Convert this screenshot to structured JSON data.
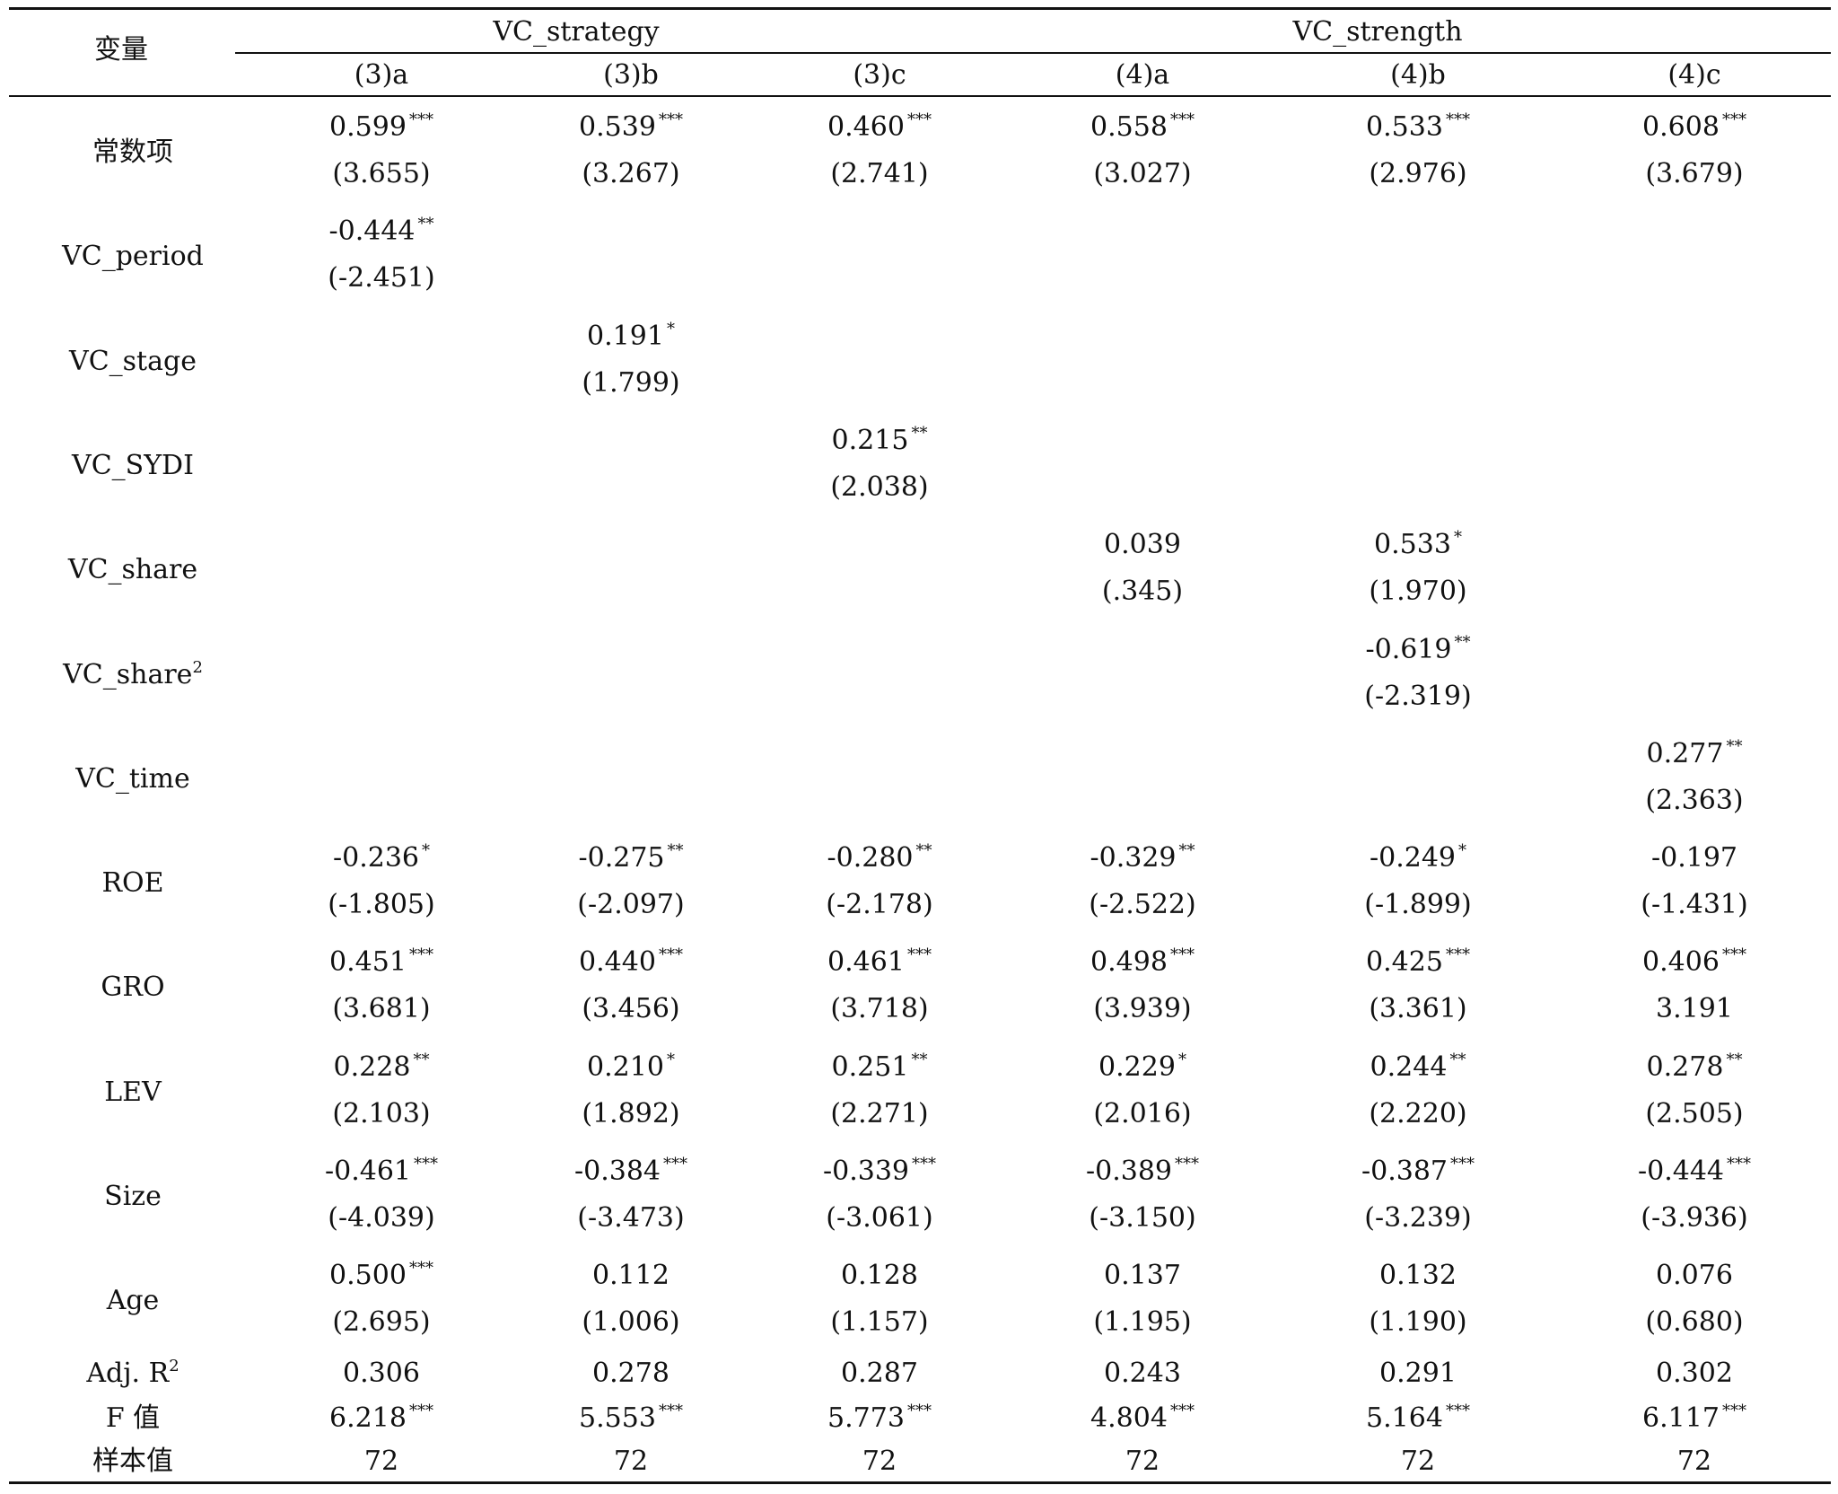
{
  "header": {
    "row_label": "变量",
    "groups": [
      {
        "label": "VC_strategy"
      },
      {
        "label": "VC_strength"
      }
    ],
    "columns": [
      "(3)a",
      "(3)b",
      "(3)c",
      "(4)a",
      "(4)b",
      "(4)c"
    ]
  },
  "rows": [
    {
      "label": "常数项",
      "sup": "",
      "cells": [
        {
          "coef": "0.599",
          "stars": "***",
          "t": "(3.655)"
        },
        {
          "coef": "0.539",
          "stars": "***",
          "t": "(3.267)"
        },
        {
          "coef": "0.460",
          "stars": "***",
          "t": "(2.741)"
        },
        {
          "coef": "0.558",
          "stars": "***",
          "t": "(3.027)"
        },
        {
          "coef": "0.533",
          "stars": "***",
          "t": "(2.976)"
        },
        {
          "coef": "0.608",
          "stars": "***",
          "t": "(3.679)"
        }
      ]
    },
    {
      "label": "VC_period",
      "sup": "",
      "cells": [
        {
          "coef": "-0.444",
          "stars": "**",
          "t": "(-2.451)"
        },
        {
          "coef": "",
          "stars": "",
          "t": ""
        },
        {
          "coef": "",
          "stars": "",
          "t": ""
        },
        {
          "coef": "",
          "stars": "",
          "t": ""
        },
        {
          "coef": "",
          "stars": "",
          "t": ""
        },
        {
          "coef": "",
          "stars": "",
          "t": ""
        }
      ]
    },
    {
      "label": "VC_stage",
      "sup": "",
      "cells": [
        {
          "coef": "",
          "stars": "",
          "t": ""
        },
        {
          "coef": "0.191",
          "stars": "*",
          "t": "(1.799)"
        },
        {
          "coef": "",
          "stars": "",
          "t": ""
        },
        {
          "coef": "",
          "stars": "",
          "t": ""
        },
        {
          "coef": "",
          "stars": "",
          "t": ""
        },
        {
          "coef": "",
          "stars": "",
          "t": ""
        }
      ]
    },
    {
      "label": "VC_SYDI",
      "sup": "",
      "cells": [
        {
          "coef": "",
          "stars": "",
          "t": ""
        },
        {
          "coef": "",
          "stars": "",
          "t": ""
        },
        {
          "coef": "0.215",
          "stars": "**",
          "t": "(2.038)"
        },
        {
          "coef": "",
          "stars": "",
          "t": ""
        },
        {
          "coef": "",
          "stars": "",
          "t": ""
        },
        {
          "coef": "",
          "stars": "",
          "t": ""
        }
      ]
    },
    {
      "label": "VC_share",
      "sup": "",
      "cells": [
        {
          "coef": "",
          "stars": "",
          "t": ""
        },
        {
          "coef": "",
          "stars": "",
          "t": ""
        },
        {
          "coef": "",
          "stars": "",
          "t": ""
        },
        {
          "coef": "0.039",
          "stars": "",
          "t": "(.345)"
        },
        {
          "coef": "0.533",
          "stars": "*",
          "t": "(1.970)"
        },
        {
          "coef": "",
          "stars": "",
          "t": ""
        }
      ]
    },
    {
      "label": "VC_share",
      "sup": "2",
      "cells": [
        {
          "coef": "",
          "stars": "",
          "t": ""
        },
        {
          "coef": "",
          "stars": "",
          "t": ""
        },
        {
          "coef": "",
          "stars": "",
          "t": ""
        },
        {
          "coef": "",
          "stars": "",
          "t": ""
        },
        {
          "coef": "-0.619",
          "stars": "**",
          "t": "(-2.319)"
        },
        {
          "coef": "",
          "stars": "",
          "t": ""
        }
      ]
    },
    {
      "label": "VC_time",
      "sup": "",
      "cells": [
        {
          "coef": "",
          "stars": "",
          "t": ""
        },
        {
          "coef": "",
          "stars": "",
          "t": ""
        },
        {
          "coef": "",
          "stars": "",
          "t": ""
        },
        {
          "coef": "",
          "stars": "",
          "t": ""
        },
        {
          "coef": "",
          "stars": "",
          "t": ""
        },
        {
          "coef": "0.277",
          "stars": "**",
          "t": "(2.363)"
        }
      ]
    },
    {
      "label": "ROE",
      "sup": "",
      "cells": [
        {
          "coef": "-0.236",
          "stars": "*",
          "t": "(-1.805)"
        },
        {
          "coef": "-0.275",
          "stars": "**",
          "t": "(-2.097)"
        },
        {
          "coef": "-0.280",
          "stars": "**",
          "t": "(-2.178)"
        },
        {
          "coef": "-0.329",
          "stars": "**",
          "t": "(-2.522)"
        },
        {
          "coef": "-0.249",
          "stars": "*",
          "t": "(-1.899)"
        },
        {
          "coef": "-0.197",
          "stars": "",
          "t": "(-1.431)"
        }
      ]
    },
    {
      "label": "GRO",
      "sup": "",
      "cells": [
        {
          "coef": "0.451",
          "stars": "***",
          "t": "(3.681)"
        },
        {
          "coef": "0.440",
          "stars": "***",
          "t": "(3.456)"
        },
        {
          "coef": "0.461",
          "stars": "***",
          "t": "(3.718)"
        },
        {
          "coef": "0.498",
          "stars": "***",
          "t": "(3.939)"
        },
        {
          "coef": "0.425",
          "stars": "***",
          "t": "(3.361)"
        },
        {
          "coef": "0.406",
          "stars": "***",
          "t": "3.191"
        }
      ]
    },
    {
      "label": "LEV",
      "sup": "",
      "cells": [
        {
          "coef": "0.228",
          "stars": "**",
          "t": "(2.103)"
        },
        {
          "coef": "0.210",
          "stars": "*",
          "t": "(1.892)"
        },
        {
          "coef": "0.251",
          "stars": "**",
          "t": "(2.271)"
        },
        {
          "coef": "0.229",
          "stars": "*",
          "t": "(2.016)"
        },
        {
          "coef": "0.244",
          "stars": "**",
          "t": "(2.220)"
        },
        {
          "coef": "0.278",
          "stars": "**",
          "t": "(2.505)"
        }
      ]
    },
    {
      "label": "Size",
      "sup": "",
      "cells": [
        {
          "coef": "-0.461",
          "stars": "***",
          "t": "(-4.039)"
        },
        {
          "coef": "-0.384",
          "stars": "***",
          "t": "(-3.473)"
        },
        {
          "coef": "-0.339",
          "stars": "***",
          "t": "(-3.061)"
        },
        {
          "coef": "-0.389",
          "stars": "***",
          "t": "(-3.150)"
        },
        {
          "coef": "-0.387",
          "stars": "***",
          "t": "(-3.239)"
        },
        {
          "coef": "-0.444",
          "stars": "***",
          "t": "(-3.936)"
        }
      ]
    },
    {
      "label": "Age",
      "sup": "",
      "cells": [
        {
          "coef": "0.500",
          "stars": "***",
          "t": "(2.695)"
        },
        {
          "coef": "0.112",
          "stars": "",
          "t": "(1.006)"
        },
        {
          "coef": "0.128",
          "stars": "",
          "t": "(1.157)"
        },
        {
          "coef": "0.137",
          "stars": "",
          "t": "(1.195)"
        },
        {
          "coef": "0.132",
          "stars": "",
          "t": "(1.190)"
        },
        {
          "coef": "0.076",
          "stars": "",
          "t": "(0.680)"
        }
      ]
    }
  ],
  "summary": [
    {
      "label": "Adj. R",
      "sup": "2",
      "cells": [
        {
          "value": "0.306",
          "stars": ""
        },
        {
          "value": "0.278",
          "stars": ""
        },
        {
          "value": "0.287",
          "stars": ""
        },
        {
          "value": "0.243",
          "stars": ""
        },
        {
          "value": "0.291",
          "stars": ""
        },
        {
          "value": "0.302",
          "stars": ""
        }
      ]
    },
    {
      "label": "F 值",
      "sup": "",
      "cells": [
        {
          "value": "6.218",
          "stars": "***"
        },
        {
          "value": "5.553",
          "stars": "***"
        },
        {
          "value": "5.773",
          "stars": "***"
        },
        {
          "value": "4.804",
          "stars": "***"
        },
        {
          "value": "5.164",
          "stars": "***"
        },
        {
          "value": "6.117",
          "stars": "***"
        }
      ]
    },
    {
      "label": "样本值",
      "sup": "",
      "cells": [
        {
          "value": "72",
          "stars": ""
        },
        {
          "value": "72",
          "stars": ""
        },
        {
          "value": "72",
          "stars": ""
        },
        {
          "value": "72",
          "stars": ""
        },
        {
          "value": "72",
          "stars": ""
        },
        {
          "value": "72",
          "stars": ""
        }
      ]
    }
  ]
}
